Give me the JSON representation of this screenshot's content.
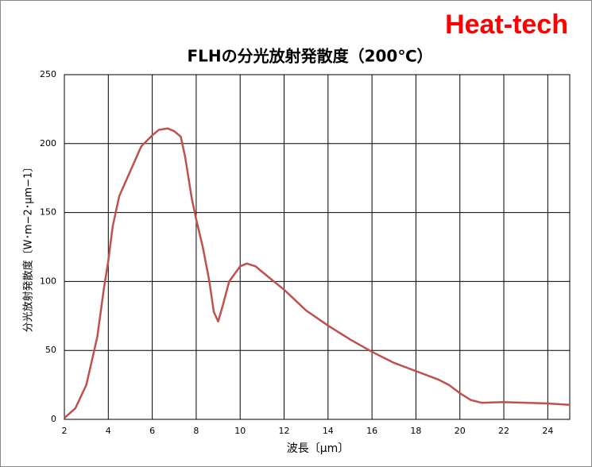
{
  "brand": "Heat-tech",
  "chart_data": {
    "type": "line",
    "title": "FLHの分光放射発散度（200℃）",
    "x_label": "波長〔μm〕",
    "y_label": "分光放射発散度〔W･m−2･μm−1〕",
    "x": [
      2,
      2.5,
      3,
      3.5,
      3.8,
      4,
      4.2,
      4.5,
      5,
      5.5,
      6,
      6.3,
      6.7,
      7,
      7.3,
      7.5,
      7.8,
      8,
      8.3,
      8.6,
      8.8,
      9,
      9.2,
      9.5,
      10,
      10.3,
      10.7,
      11,
      12,
      13,
      14,
      15,
      16,
      17,
      18,
      19,
      19.5,
      20,
      20.5,
      21,
      22,
      23,
      24,
      25
    ],
    "series": [
      {
        "name": "FLH",
        "color": "#c0504d",
        "values": [
          1,
          8,
          25,
          60,
          95,
          115,
          140,
          162,
          180,
          198,
          206,
          210,
          211,
          209,
          205,
          190,
          160,
          145,
          125,
          100,
          78,
          71,
          82,
          100,
          111,
          113,
          111,
          107,
          94,
          79,
          68,
          58,
          49,
          41,
          35,
          29,
          25,
          19,
          14,
          12,
          12.5,
          12,
          11.5,
          10.5
        ]
      }
    ],
    "xlim": [
      2,
      25
    ],
    "xticks": [
      2,
      4,
      6,
      8,
      10,
      12,
      14,
      16,
      18,
      20,
      22,
      24
    ],
    "ylim": [
      0,
      250
    ],
    "yticks": [
      0,
      50,
      100,
      150,
      200,
      250
    ],
    "grid": true
  }
}
